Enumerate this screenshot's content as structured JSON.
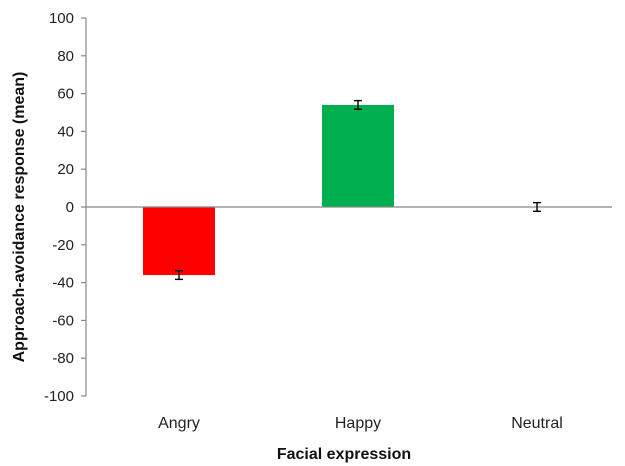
{
  "chart_data": {
    "type": "bar",
    "xlabel": "Facial expression",
    "ylabel": "Approach-avoidance response (mean)",
    "categories": [
      "Angry",
      "Happy",
      "Neutral"
    ],
    "values": [
      -36,
      54,
      0
    ],
    "errors": [
      1.5,
      1.5,
      1.5
    ],
    "colors": [
      "#ff0000",
      "#00b050",
      "#ffffff"
    ],
    "ylim": [
      -100,
      100
    ],
    "yticks": [
      "100",
      "80",
      "60",
      "40",
      "20",
      "0",
      "-20",
      "-40",
      "-60",
      "-80",
      "-100"
    ],
    "grid": false,
    "legend": "none"
  }
}
